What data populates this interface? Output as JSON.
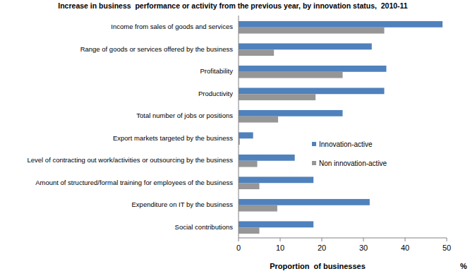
{
  "chart_data": {
    "type": "bar",
    "orientation": "horizontal",
    "title": "Increase in business  performance or activity from the previous year, by innovation status,  2010-11",
    "x_label": "Proportion  of businesses",
    "annotations": [
      "%"
    ],
    "categories": [
      "Income from sales of goods and services",
      "Range of goods or services offered by the business",
      "Profitability",
      "Productivity",
      "Total number of jobs or positions",
      "Export markets targeted by the business",
      "Level of contracting out work/activities or outsourcing by the business",
      "Amount of structured/formal training for employees of the business",
      "Expenditure on IT by the business",
      "Social contributions"
    ],
    "series": [
      {
        "name": "Innovation-active",
        "color": "#4f81bd",
        "values": [
          49,
          32,
          35.5,
          35,
          25,
          3.5,
          13.5,
          18,
          31.5,
          18
        ]
      },
      {
        "name": "Non innovation-active",
        "color": "#969696",
        "values": [
          35,
          8.5,
          25,
          18.5,
          9.5,
          0.3,
          4.5,
          5,
          9.3,
          5
        ]
      }
    ],
    "xlim": [
      0,
      50
    ],
    "xticks": [
      0,
      10,
      20,
      30,
      40,
      50
    ],
    "grid": false,
    "legend": "right"
  }
}
